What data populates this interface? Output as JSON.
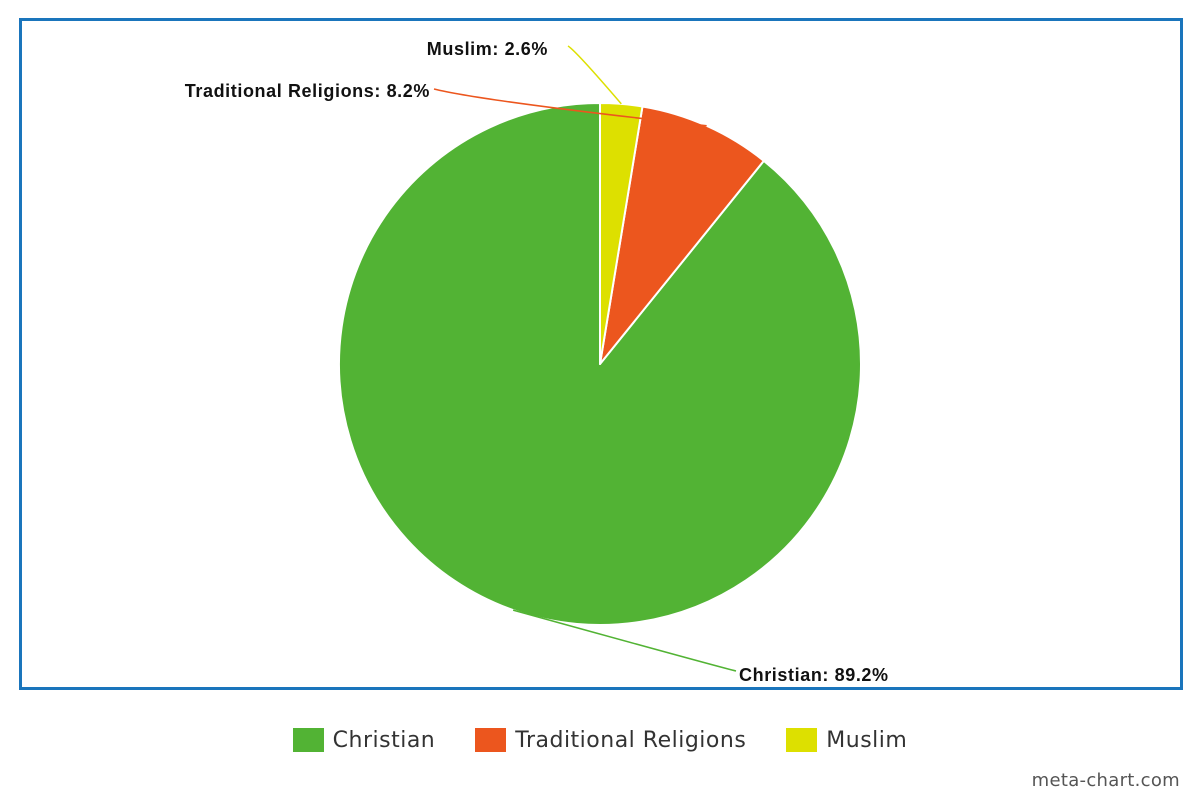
{
  "chart_data": {
    "type": "pie",
    "title": "",
    "slices": [
      {
        "label": "Christian",
        "value": 89.2,
        "color": "#52b334",
        "data_label": "Christian: 89.2%"
      },
      {
        "label": "Traditional Religions",
        "value": 8.2,
        "color": "#ec561e",
        "data_label": "Traditional Religions: 8.2%"
      },
      {
        "label": "Muslim",
        "value": 2.6,
        "color": "#dde000",
        "data_label": "Muslim: 2.6%"
      }
    ],
    "legend_position": "bottom-center",
    "start_angle": "12 o'clock",
    "direction": "counter-clockwise"
  },
  "legend": {
    "items": [
      {
        "label": "Christian",
        "color": "#52b334"
      },
      {
        "label": "Traditional Religions",
        "color": "#ec561e"
      },
      {
        "label": "Muslim",
        "color": "#dde000"
      }
    ]
  },
  "watermark": "meta-chart.com",
  "frame_color": "#1a75bc"
}
